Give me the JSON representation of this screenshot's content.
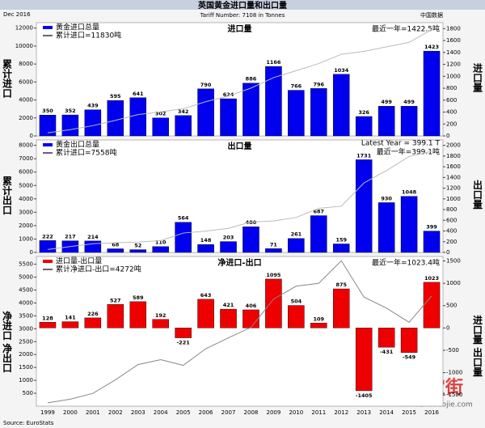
{
  "header": {
    "title": "英国黄金进口量和出口量",
    "date": "Dec 2016",
    "subtitle": "Tariff Number: 7108 in Tonnes",
    "brand": "中国数据"
  },
  "source": "Source: EuroStats",
  "watermark": [
    "珠宝街",
    "www.zhubaojie.com"
  ],
  "chart_data": [
    {
      "type": "bar",
      "title": "进口量",
      "y_label": "累计进口",
      "y2_label": "进口量",
      "annotations": [
        "最近一年=1422.5吨"
      ],
      "series": [
        {
          "name": "黄金进口总量",
          "color": "#0000ee",
          "axis": "y2",
          "values": [
            350,
            352,
            439,
            595,
            641,
            302,
            342,
            790,
            624,
            886,
            1166,
            766,
            796,
            1034,
            326,
            499,
            499,
            1423
          ]
        },
        {
          "name": "累计进口=11830吨",
          "color": "#bbbbbb",
          "values": [
            350,
            702,
            1141,
            1736,
            2377,
            2679,
            3021,
            3811,
            4435,
            5321,
            6487,
            7253,
            8049,
            9083,
            9409,
            9908,
            10407,
            11830
          ]
        }
      ],
      "ylim": [
        0,
        12600
      ],
      "yticks": [
        0,
        2000,
        4000,
        6000,
        8000,
        10000,
        12000
      ],
      "y2lim": [
        0,
        1900
      ],
      "y2ticks": [
        0,
        200,
        400,
        600,
        800,
        1000,
        1200,
        1400,
        1600,
        1800
      ]
    },
    {
      "type": "bar",
      "title": "出口量",
      "y_label": "累计出口",
      "y2_label": "出口量",
      "annotations": [
        "Latest Year = 399.1 T",
        "最近一年=399.1吨"
      ],
      "series": [
        {
          "name": "黄金出口总量",
          "color": "#0000ee",
          "axis": "y2",
          "values": [
            222,
            217,
            214,
            68,
            52,
            110,
            564,
            148,
            203,
            480,
            71,
            261,
            687,
            159,
            1731,
            930,
            1048,
            399
          ]
        },
        {
          "name": "累计进口=7558吨",
          "color": "#bbbbbb",
          "values": [
            222,
            439,
            653,
            721,
            773,
            883,
            1447,
            1595,
            1798,
            2278,
            2349,
            2610,
            3297,
            3456,
            5187,
            6117,
            7165,
            7558
          ]
        }
      ],
      "ylim": [
        0,
        8400
      ],
      "yticks": [
        0,
        1000,
        2000,
        3000,
        4000,
        5000,
        6000,
        7000,
        8000
      ],
      "y2lim": [
        0,
        2100
      ],
      "y2ticks": [
        0,
        200,
        400,
        600,
        800,
        1000,
        1200,
        1400,
        1600,
        1800,
        2000
      ]
    },
    {
      "type": "bar",
      "title": "净进口-出口",
      "y_label": "净进口 净出口",
      "y2_label": "进口量 出口量",
      "annotations": [
        "最近一年=1023.4吨"
      ],
      "categories": [
        "1999",
        "2000",
        "2001",
        "2002",
        "2003",
        "2004",
        "2005",
        "2006",
        "2007",
        "2008",
        "2009",
        "2010",
        "2011",
        "2012",
        "2013",
        "2014",
        "2015",
        "2016"
      ],
      "series": [
        {
          "name": "进口量-出口量",
          "color": "#ee0000",
          "axis": "y2",
          "values": [
            128,
            141,
            226,
            527,
            589,
            192,
            -221,
            643,
            421,
            406,
            1095,
            504,
            109,
            875,
            -1405,
            -431,
            -549,
            1023
          ]
        },
        {
          "name": "累计净进口-出口=4272吨",
          "color": "#888888",
          "values": [
            128,
            269,
            495,
            1022,
            1611,
            1803,
            1582,
            2225,
            2646,
            3052,
            4147,
            4651,
            4760,
            5635,
            4230,
            3799,
            3250,
            4272
          ]
        }
      ],
      "ylim": [
        0,
        5800
      ],
      "yticks": [
        500,
        1000,
        1500,
        2000,
        2500,
        3000,
        3500,
        4000,
        4500,
        5000,
        5500
      ],
      "y2lim": [
        -1750,
        1600
      ],
      "y2ticks": [
        -1500,
        -1000,
        -500,
        0,
        500,
        1000,
        1500
      ]
    }
  ]
}
